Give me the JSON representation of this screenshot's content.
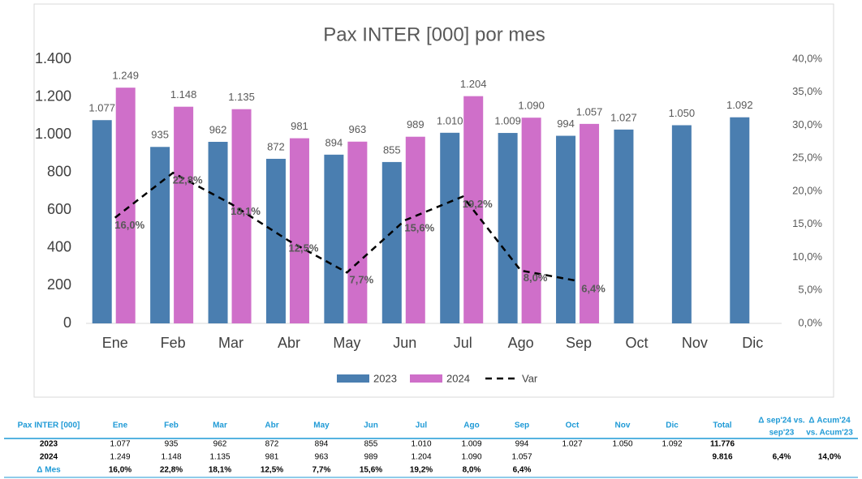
{
  "chart_data": {
    "type": "bar-line",
    "title": "Pax INTER [000]  por mes",
    "categories": [
      "Ene",
      "Feb",
      "Mar",
      "Abr",
      "May",
      "Jun",
      "Jul",
      "Ago",
      "Sep",
      "Oct",
      "Nov",
      "Dic"
    ],
    "series": [
      {
        "name": "2023",
        "type": "bar",
        "color": "#4a7eb0",
        "values": [
          1077,
          935,
          962,
          872,
          894,
          855,
          1010,
          1009,
          994,
          1027,
          1050,
          1092
        ],
        "value_labels": [
          "1.077",
          "935",
          "962",
          "872",
          "894",
          "855",
          "1.010",
          "1.009",
          "994",
          "1.027",
          "1.050",
          "1.092"
        ]
      },
      {
        "name": "2024",
        "type": "bar",
        "color": "#cf6fc9",
        "values": [
          1249,
          1148,
          1135,
          981,
          963,
          989,
          1204,
          1090,
          1057,
          null,
          null,
          null
        ],
        "value_labels": [
          "1.249",
          "1.148",
          "1.135",
          "981",
          "963",
          "989",
          "1.204",
          "1.090",
          "1.057",
          null,
          null,
          null
        ]
      },
      {
        "name": "Var",
        "type": "line",
        "axis": "y2",
        "color": "#000000",
        "dashed": true,
        "values": [
          16.0,
          22.8,
          18.1,
          12.5,
          7.7,
          15.6,
          19.2,
          8.0,
          6.4,
          null,
          null,
          null
        ],
        "value_labels": [
          "16,0%",
          "22,8%",
          "18,1%",
          "12,5%",
          "7,7%",
          "15,6%",
          "19,2%",
          "8,0%",
          "6,4%",
          null,
          null,
          null
        ]
      }
    ],
    "ylim": [
      0,
      1400
    ],
    "yticks": [
      0,
      200,
      400,
      600,
      800,
      {
        "value": 1000,
        "label": "1.000"
      },
      {
        "value": 1200,
        "label": "1.200"
      },
      {
        "value": 1400,
        "label": "1.400"
      }
    ],
    "y2lim": [
      0,
      40
    ],
    "y2ticks": [
      {
        "value": 0,
        "label": "0,0%"
      },
      {
        "value": 5,
        "label": "5,0%"
      },
      {
        "value": 10,
        "label": "10,0%"
      },
      {
        "value": 15,
        "label": "15,0%"
      },
      {
        "value": 20,
        "label": "20,0%"
      },
      {
        "value": 25,
        "label": "25,0%"
      },
      {
        "value": 30,
        "label": "30,0%"
      },
      {
        "value": 35,
        "label": "35,0%"
      },
      {
        "value": 40,
        "label": "40,0%"
      }
    ],
    "legend": "bottom",
    "grid": false
  },
  "table": {
    "header": [
      "Pax INTER [000]",
      "Ene",
      "Feb",
      "Mar",
      "Abr",
      "May",
      "Jun",
      "Jul",
      "Ago",
      "Sep",
      "Oct",
      "Nov",
      "Dic",
      "Total",
      [
        "Δ sep'24 vs.",
        "sep'23"
      ],
      [
        "Δ Acum'24",
        "vs. Acum'23"
      ]
    ],
    "rows": [
      [
        "2023",
        "1.077",
        "935",
        "962",
        "872",
        "894",
        "855",
        "1.010",
        "1.009",
        "994",
        "1.027",
        "1.050",
        "1.092",
        "11.776",
        null,
        null
      ],
      [
        "2024",
        "1.249",
        "1.148",
        "1.135",
        "981",
        "963",
        "989",
        "1.204",
        "1.090",
        "1.057",
        null,
        null,
        null,
        "9.816",
        "6,4%",
        "14,0%"
      ],
      [
        "Δ Mes",
        "16,0%",
        "22,8%",
        "18,1%",
        "12,5%",
        "7,7%",
        "15,6%",
        "19,2%",
        "8,0%",
        "6,4%",
        null,
        null,
        null,
        null,
        null,
        null
      ]
    ]
  }
}
